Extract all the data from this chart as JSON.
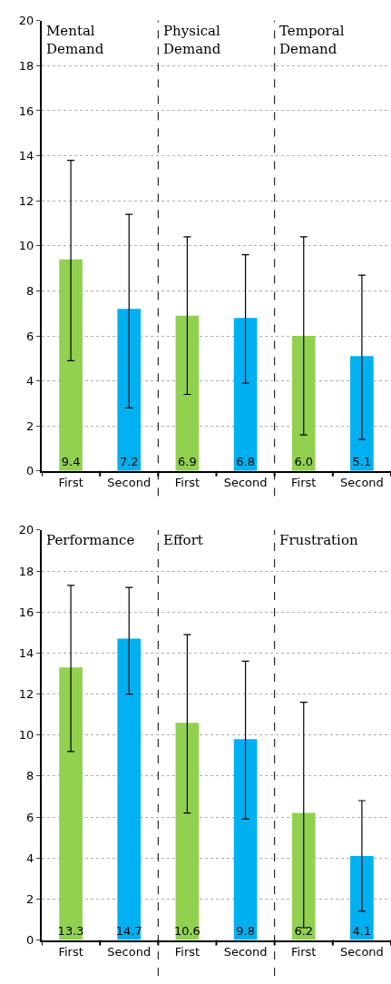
{
  "chart_data": [
    {
      "type": "bar",
      "categories": [
        "First",
        "Second",
        "First",
        "Second",
        "First",
        "Second"
      ],
      "values": [
        9.4,
        7.2,
        6.9,
        6.8,
        6.0,
        5.1
      ],
      "value_labels": [
        "9.4",
        "7.2",
        "6.9",
        "6.8",
        "6.0",
        "5.1"
      ],
      "errors": [
        [
          4.9,
          13.8
        ],
        [
          2.8,
          11.4
        ],
        [
          3.4,
          10.4
        ],
        [
          3.9,
          9.6
        ],
        [
          1.6,
          10.4
        ],
        [
          1.4,
          8.7
        ]
      ],
      "colors": [
        "#92d050",
        "#00b0f0",
        "#92d050",
        "#00b0f0",
        "#92d050",
        "#00b0f0"
      ],
      "annotations": [
        "Mental\nDemand",
        "Physical\nDemand",
        "Temporal\nDemand"
      ],
      "ylim": [
        0,
        20
      ],
      "yticks": [
        0,
        2,
        4,
        6,
        8,
        10,
        12,
        14,
        16,
        18,
        20
      ],
      "grid": "y"
    },
    {
      "type": "bar",
      "categories": [
        "First",
        "Second",
        "First",
        "Second",
        "First",
        "Second"
      ],
      "values": [
        13.3,
        14.7,
        10.6,
        9.8,
        6.2,
        4.1
      ],
      "value_labels": [
        "13.3",
        "14.7",
        "10.6",
        "9.8",
        "6.2",
        "4.1"
      ],
      "errors": [
        [
          9.2,
          17.3
        ],
        [
          12.0,
          17.2
        ],
        [
          6.2,
          14.9
        ],
        [
          5.9,
          13.6
        ],
        [
          0.6,
          11.6
        ],
        [
          1.4,
          6.8
        ]
      ],
      "colors": [
        "#92d050",
        "#00b0f0",
        "#92d050",
        "#00b0f0",
        "#92d050",
        "#00b0f0"
      ],
      "annotations": [
        "Performance",
        "Effort",
        "Frustration"
      ],
      "ylim": [
        0,
        20
      ],
      "yticks": [
        0,
        2,
        4,
        6,
        8,
        10,
        12,
        14,
        16,
        18,
        20
      ],
      "grid": "y"
    }
  ]
}
